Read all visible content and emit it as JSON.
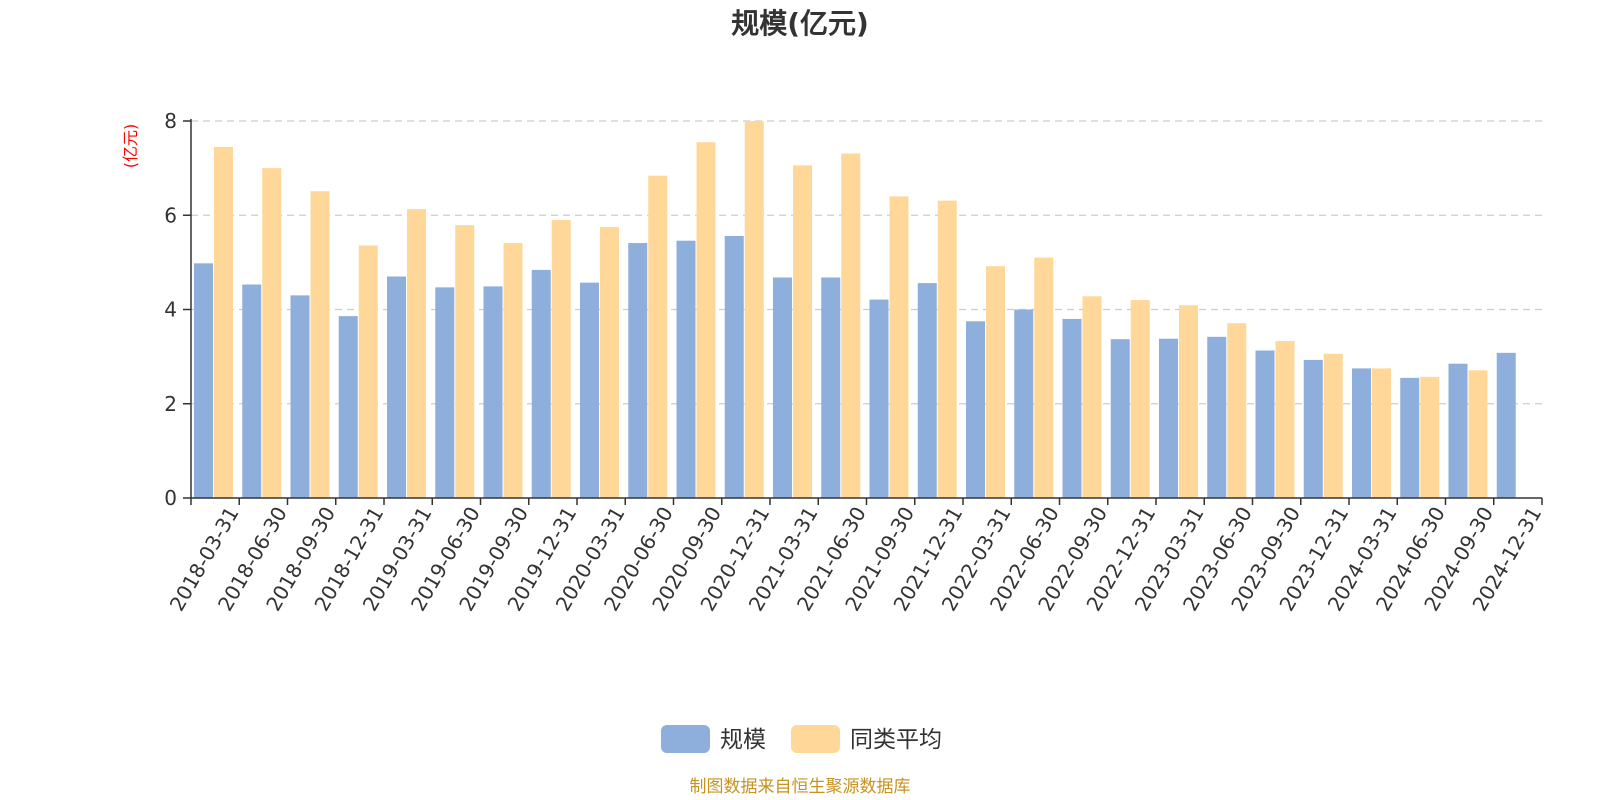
{
  "chart_data": {
    "type": "bar",
    "title": "规模(亿元)",
    "ylabel": "(亿元)",
    "xlabel": "",
    "ylim": [
      0,
      8
    ],
    "yticks": [
      0,
      2,
      4,
      6,
      8
    ],
    "grid": true,
    "legend_position": "bottom-center",
    "categories": [
      "2018-03-31",
      "2018-06-30",
      "2018-09-30",
      "2018-12-31",
      "2019-03-31",
      "2019-06-30",
      "2019-09-30",
      "2019-12-31",
      "2020-03-31",
      "2020-06-30",
      "2020-09-30",
      "2020-12-31",
      "2021-03-31",
      "2021-06-30",
      "2021-09-30",
      "2021-12-31",
      "2022-03-31",
      "2022-06-30",
      "2022-09-30",
      "2022-12-31",
      "2023-03-31",
      "2023-06-30",
      "2023-09-30",
      "2023-12-31",
      "2024-03-31",
      "2024-06-30",
      "2024-09-30",
      "2024-12-31"
    ],
    "series": [
      {
        "name": "规模",
        "color": "#8eaedb",
        "values": [
          4.98,
          4.53,
          4.3,
          3.86,
          4.7,
          4.47,
          4.49,
          4.84,
          4.57,
          5.41,
          5.46,
          5.56,
          4.68,
          4.68,
          4.21,
          4.56,
          3.75,
          4.0,
          3.8,
          3.37,
          3.38,
          3.42,
          3.13,
          2.93,
          2.75,
          2.55,
          2.85,
          3.08
        ]
      },
      {
        "name": "同类平均",
        "color": "#ffd899",
        "values": [
          7.45,
          7.0,
          6.51,
          5.36,
          6.13,
          5.79,
          5.41,
          5.9,
          5.75,
          6.84,
          7.55,
          8.0,
          7.06,
          7.31,
          6.4,
          6.31,
          4.92,
          5.1,
          4.28,
          4.2,
          4.09,
          3.71,
          3.33,
          3.06,
          2.75,
          2.57,
          2.71,
          null
        ]
      }
    ]
  },
  "colors": {
    "title": "#333333",
    "axis": "#333333",
    "grid": "#cccccc",
    "ylabel": "#ff0000",
    "source": "#c8921e"
  },
  "source_note": "制图数据来自恒生聚源数据库"
}
